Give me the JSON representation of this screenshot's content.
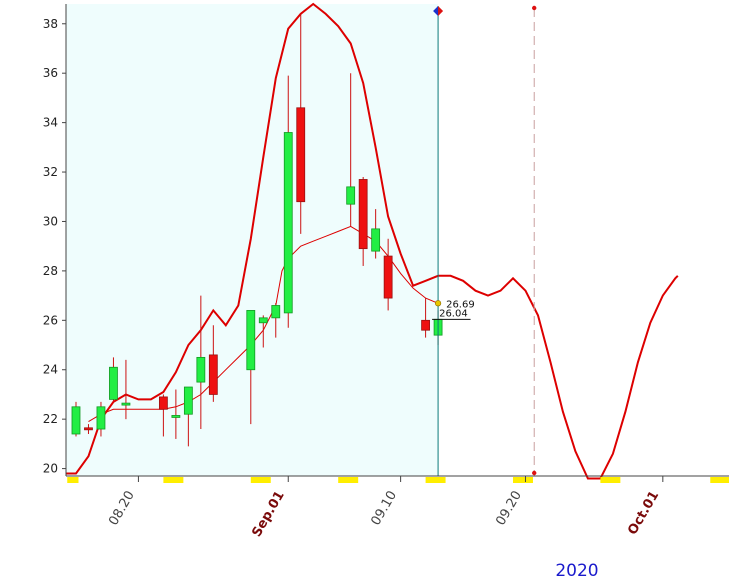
{
  "chart_data": {
    "type": "candlestick",
    "year_label": "2020",
    "y_ticks": [
      "20",
      "22",
      "24",
      "26",
      "28",
      "30",
      "32",
      "34",
      "36",
      "38"
    ],
    "ylim": [
      19.7,
      38.8
    ],
    "x_ticks": [
      {
        "label": "08.20",
        "day": 20,
        "month_start": false
      },
      {
        "label": "Sep.01",
        "day": 32,
        "month_start": true
      },
      {
        "label": "09.10",
        "day": 41,
        "month_start": false
      },
      {
        "label": "09.20",
        "day": 51,
        "month_start": false
      },
      {
        "label": "Oct.01",
        "day": 62,
        "month_start": true
      }
    ],
    "xlim": [
      14.2,
      67.3
    ],
    "candles": [
      {
        "day": 15,
        "open": 21.4,
        "high": 22.7,
        "low": 21.3,
        "close": 22.5
      },
      {
        "day": 16,
        "open": 21.65,
        "high": 21.8,
        "low": 21.4,
        "close": 21.6
      },
      {
        "day": 17,
        "open": 21.6,
        "high": 22.7,
        "low": 21.3,
        "close": 22.5
      },
      {
        "day": 18,
        "open": 22.8,
        "high": 24.5,
        "low": 22.7,
        "close": 24.1
      },
      {
        "day": 19,
        "open": 22.6,
        "high": 24.4,
        "low": 22.0,
        "close": 22.65
      },
      {
        "day": 22,
        "open": 22.9,
        "high": 23.0,
        "low": 21.3,
        "close": 22.4
      },
      {
        "day": 23,
        "open": 22.1,
        "high": 23.2,
        "low": 21.2,
        "close": 22.15
      },
      {
        "day": 24,
        "open": 22.2,
        "high": 23.2,
        "low": 20.9,
        "close": 23.3
      },
      {
        "day": 25,
        "open": 23.5,
        "high": 27.0,
        "low": 21.6,
        "close": 24.5
      },
      {
        "day": 26,
        "open": 24.6,
        "high": 25.8,
        "low": 22.7,
        "close": 23.0
      },
      {
        "day": 29,
        "open": 24.0,
        "high": 26.3,
        "low": 21.8,
        "close": 26.4
      },
      {
        "day": 30,
        "open": 25.9,
        "high": 26.2,
        "low": 24.9,
        "close": 26.1
      },
      {
        "day": 31,
        "open": 26.1,
        "high": 26.7,
        "low": 25.3,
        "close": 26.6
      },
      {
        "day": 32,
        "open": 26.3,
        "high": 35.9,
        "low": 25.7,
        "close": 33.6
      },
      {
        "day": 33,
        "open": 34.6,
        "high": 38.4,
        "low": 29.5,
        "close": 30.8
      },
      {
        "day": 37,
        "open": 30.7,
        "high": 36.0,
        "low": 29.8,
        "close": 31.4
      },
      {
        "day": 38,
        "open": 31.7,
        "high": 31.8,
        "low": 28.2,
        "close": 28.9
      },
      {
        "day": 39,
        "open": 28.8,
        "high": 30.5,
        "low": 28.5,
        "close": 29.7
      },
      {
        "day": 40,
        "open": 28.6,
        "high": 29.3,
        "low": 26.4,
        "close": 26.9
      },
      {
        "day": 43,
        "open": 26.0,
        "high": 26.9,
        "low": 25.3,
        "close": 25.6
      },
      {
        "day": 44,
        "open": 25.4,
        "high": 26.4,
        "low": 25.0,
        "close": 26.04
      }
    ],
    "upper_band": [
      [
        14.2,
        19.8
      ],
      [
        15.0,
        19.8
      ],
      [
        16.0,
        20.5
      ],
      [
        17.0,
        22.0
      ],
      [
        18.0,
        22.7
      ],
      [
        19.0,
        23.0
      ],
      [
        20.0,
        22.8
      ],
      [
        21.0,
        22.8
      ],
      [
        22.0,
        23.1
      ],
      [
        23.0,
        23.9
      ],
      [
        24.0,
        25.0
      ],
      [
        25.0,
        25.6
      ],
      [
        26.0,
        26.4
      ],
      [
        27.0,
        25.8
      ],
      [
        28.0,
        26.6
      ],
      [
        29.0,
        29.3
      ],
      [
        30.0,
        32.6
      ],
      [
        31.0,
        35.8
      ],
      [
        32.0,
        37.8
      ],
      [
        33.0,
        38.4
      ],
      [
        34.0,
        38.8
      ],
      [
        35.0,
        38.4
      ],
      [
        36.0,
        37.9
      ],
      [
        37.0,
        37.2
      ],
      [
        38.0,
        35.6
      ],
      [
        39.0,
        33.0
      ],
      [
        40.0,
        30.2
      ],
      [
        41.0,
        28.7
      ],
      [
        42.0,
        27.4
      ],
      [
        43.0,
        27.6
      ],
      [
        44.0,
        27.8
      ],
      [
        45.0,
        27.8
      ],
      [
        46.0,
        27.6
      ],
      [
        47.0,
        27.2
      ],
      [
        48.0,
        27.0
      ],
      [
        49.0,
        27.2
      ],
      [
        50.0,
        27.7
      ],
      [
        51.0,
        27.2
      ],
      [
        52.0,
        26.2
      ],
      [
        53.0,
        24.3
      ],
      [
        54.0,
        22.3
      ],
      [
        55.0,
        20.7
      ],
      [
        56.0,
        19.6
      ],
      [
        57.0,
        19.6
      ],
      [
        58.0,
        20.6
      ],
      [
        59.0,
        22.3
      ],
      [
        60.0,
        24.3
      ],
      [
        61.0,
        25.9
      ],
      [
        62.0,
        27.0
      ],
      [
        63.0,
        27.7
      ],
      [
        63.2,
        27.8
      ]
    ],
    "middle_line": [
      [
        16.0,
        21.9
      ],
      [
        17.0,
        22.2
      ],
      [
        18.0,
        22.4
      ],
      [
        19.0,
        22.4
      ],
      [
        20.0,
        22.4
      ],
      [
        21.0,
        22.4
      ],
      [
        22.0,
        22.4
      ],
      [
        23.0,
        22.5
      ],
      [
        24.0,
        22.7
      ],
      [
        25.0,
        23.0
      ],
      [
        26.0,
        23.5
      ],
      [
        27.0,
        24.0
      ],
      [
        28.0,
        24.5
      ],
      [
        29.0,
        25.0
      ],
      [
        30.0,
        25.6
      ],
      [
        31.0,
        26.6
      ],
      [
        31.5,
        28.0
      ],
      [
        32.0,
        28.5
      ],
      [
        33.0,
        29.0
      ],
      [
        34.0,
        29.2
      ],
      [
        35.0,
        29.4
      ],
      [
        36.0,
        29.6
      ],
      [
        37.0,
        29.8
      ],
      [
        38.0,
        29.5
      ],
      [
        39.0,
        29.2
      ],
      [
        40.0,
        28.6
      ],
      [
        41.0,
        27.9
      ],
      [
        42.0,
        27.3
      ],
      [
        43.0,
        26.9
      ],
      [
        44.0,
        26.69
      ]
    ],
    "last_close_label": "26.04",
    "indicator_label": "26.69",
    "last_close_value": 26.04,
    "indicator_value": 26.69,
    "current_day": 44,
    "forecast_day": 51.7,
    "colors": {
      "up_candle": "#22ee44",
      "down_candle": "#ee1111",
      "band": "#dd0000",
      "history_bg": "#effdfd",
      "current_line": "#0a7a7a",
      "forecast_line": "#c8a0a0",
      "axis_marker": "#ffee00",
      "year_text": "#1a1acc"
    }
  }
}
